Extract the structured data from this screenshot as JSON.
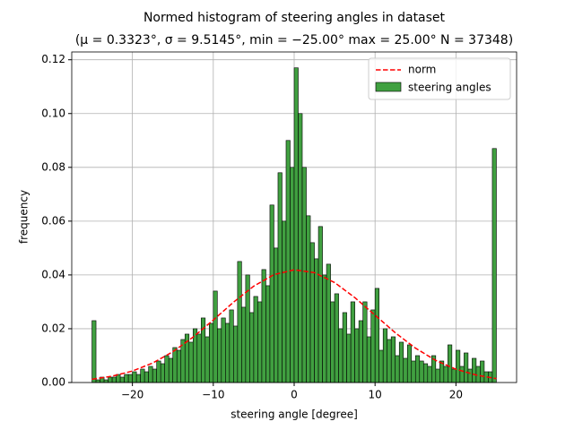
{
  "chart_data": {
    "type": "histogram",
    "title": "Normed histogram of steering angles in dataset",
    "subtitle": "(μ = 0.3323°,  σ = 9.5145°,  min = −25.00° max = 25.00° N = 37348)",
    "xlabel": "steering angle [degree]",
    "ylabel": "frequency",
    "name": "steering angles",
    "color": "#40a040",
    "edgecolor": "#000000",
    "bins": [
      -25,
      -24.5,
      -24,
      -23.5,
      -23,
      -22.5,
      -22,
      -21.5,
      -21,
      -20.5,
      -20,
      -19.5,
      -19,
      -18.5,
      -18,
      -17.5,
      -17,
      -16.5,
      -16,
      -15.5,
      -15,
      -14.5,
      -14,
      -13.5,
      -13,
      -12.5,
      -12,
      -11.5,
      -11,
      -10.5,
      -10,
      -9.5,
      -9,
      -8.5,
      -8,
      -7.5,
      -7,
      -6.5,
      -6,
      -5.5,
      -5,
      -4.5,
      -4,
      -3.5,
      -3,
      -2.5,
      -2,
      -1.5,
      -1,
      -0.5,
      0,
      0.5,
      1,
      1.5,
      2,
      2.5,
      3,
      3.5,
      4,
      4.5,
      5,
      5.5,
      6,
      6.5,
      7,
      7.5,
      8,
      8.5,
      9,
      9.5,
      10,
      10.5,
      11,
      11.5,
      12,
      12.5,
      13,
      13.5,
      14,
      14.5,
      15,
      15.5,
      16,
      16.5,
      17,
      17.5,
      18,
      18.5,
      19,
      19.5,
      20,
      20.5,
      21,
      21.5,
      22,
      22.5,
      23,
      23.5,
      24,
      24.5,
      25
    ],
    "values": [
      0.023,
      0.001,
      0.002,
      0.001,
      0.002,
      0.002,
      0.003,
      0.002,
      0.003,
      0.003,
      0.004,
      0.003,
      0.005,
      0.004,
      0.006,
      0.005,
      0.008,
      0.007,
      0.01,
      0.009,
      0.013,
      0.012,
      0.016,
      0.018,
      0.015,
      0.02,
      0.018,
      0.024,
      0.017,
      0.022,
      0.034,
      0.02,
      0.024,
      0.022,
      0.027,
      0.021,
      0.045,
      0.028,
      0.04,
      0.026,
      0.032,
      0.03,
      0.042,
      0.036,
      0.066,
      0.05,
      0.078,
      0.06,
      0.09,
      0.08,
      0.117,
      0.1,
      0.08,
      0.062,
      0.052,
      0.046,
      0.058,
      0.04,
      0.044,
      0.03,
      0.033,
      0.02,
      0.026,
      0.018,
      0.03,
      0.02,
      0.023,
      0.03,
      0.017,
      0.027,
      0.035,
      0.012,
      0.02,
      0.016,
      0.017,
      0.01,
      0.015,
      0.009,
      0.014,
      0.008,
      0.01,
      0.008,
      0.007,
      0.006,
      0.01,
      0.005,
      0.008,
      0.006,
      0.014,
      0.005,
      0.012,
      0.006,
      0.011,
      0.005,
      0.009,
      0.006,
      0.008,
      0.004,
      0.004,
      0.087
    ],
    "curve": {
      "name": "norm",
      "color": "#ff0000",
      "x": [
        -25,
        -22.5,
        -20,
        -17.5,
        -15,
        -12.5,
        -10,
        -7.5,
        -5,
        -2.5,
        0,
        2.5,
        5,
        7.5,
        10,
        12.5,
        15,
        17.5,
        20,
        22.5,
        25
      ],
      "values": [
        0.00121,
        0.00236,
        0.00427,
        0.00724,
        0.01144,
        0.01688,
        0.02325,
        0.02987,
        0.03583,
        0.04011,
        0.0419,
        0.04085,
        0.03717,
        0.03156,
        0.02502,
        0.0185,
        0.01277,
        0.00823,
        0.00495,
        0.00278,
        0.00145
      ]
    },
    "xlim": [
      -27.5,
      27.5
    ],
    "ylim": [
      0,
      0.1229
    ],
    "xticks": [
      {
        "value": -20,
        "label": "−20"
      },
      {
        "value": -10,
        "label": "−10"
      },
      0,
      10,
      20
    ],
    "yticks": [
      {
        "value": 0,
        "label": "0.00"
      },
      {
        "value": 0.02,
        "label": "0.02"
      },
      {
        "value": 0.04,
        "label": "0.04"
      },
      {
        "value": 0.06,
        "label": "0.06"
      },
      {
        "value": 0.08,
        "label": "0.08"
      },
      {
        "value": 0.1,
        "label": "0.10"
      },
      {
        "value": 0.12,
        "label": "0.12"
      }
    ],
    "grid": true,
    "legend": "upper right"
  }
}
